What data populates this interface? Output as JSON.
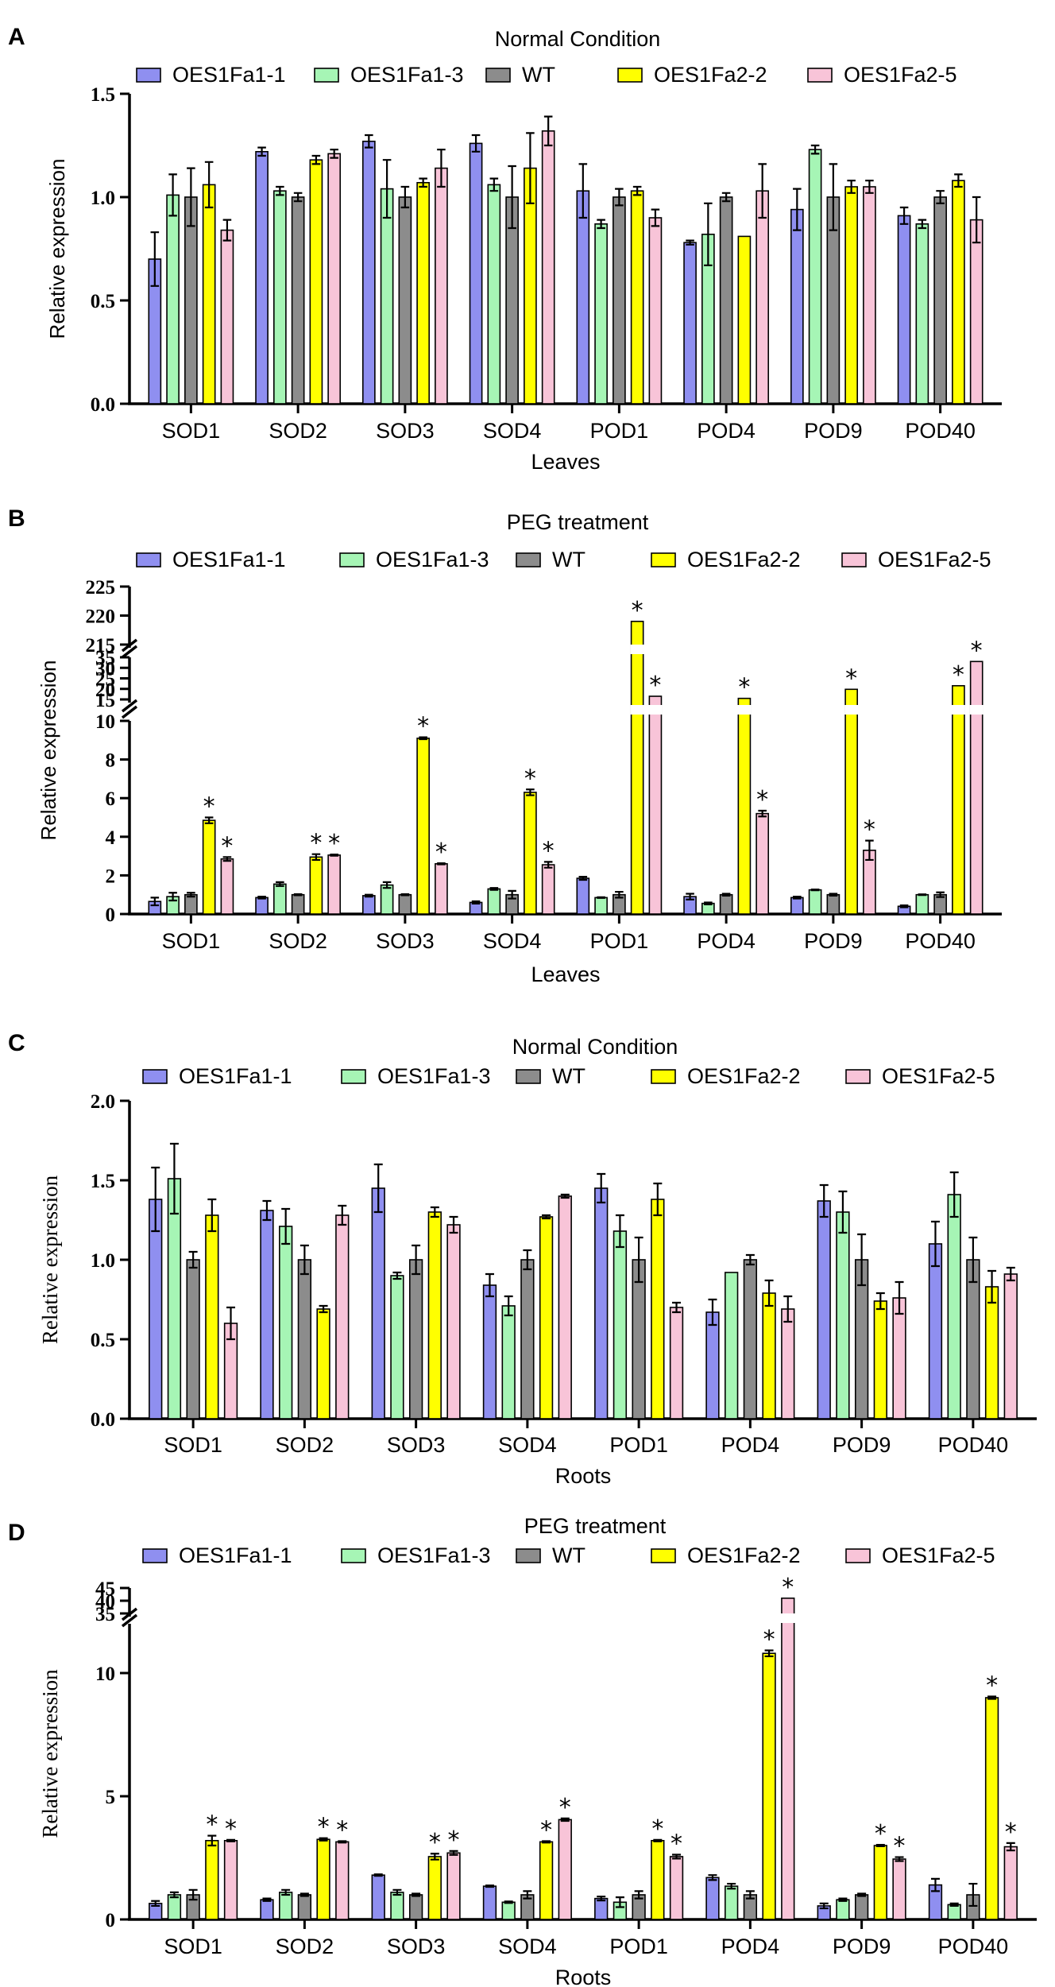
{
  "figure": {
    "colors": {
      "OES1Fa1-1": "#8f8ff0",
      "OES1Fa1-3": "#a6f5b5",
      "WT": "#8c8c8c",
      "OES1Fa2-2": "#ffff00",
      "OES1Fa2-5": "#f8c4d8"
    }
  },
  "chart_data": [
    {
      "panel": "A",
      "type": "bar",
      "title": "Normal Condition",
      "xlabel": "Leaves",
      "ylabel": "Relative expression",
      "ylim": [
        0,
        1.5
      ],
      "yticks": [
        "0.0",
        "0.5",
        "1.0",
        "1.5"
      ],
      "categories": [
        "SOD1",
        "SOD2",
        "SOD3",
        "SOD4",
        "POD1",
        "POD4",
        "POD9",
        "POD40"
      ],
      "series": [
        {
          "name": "OES1Fa1-1",
          "values": [
            0.7,
            1.22,
            1.27,
            1.26,
            1.03,
            0.78,
            0.94,
            0.91
          ],
          "errors": [
            0.13,
            0.02,
            0.03,
            0.04,
            0.13,
            0.01,
            0.1,
            0.04
          ]
        },
        {
          "name": "OES1Fa1-3",
          "values": [
            1.01,
            1.03,
            1.04,
            1.06,
            0.87,
            0.82,
            1.23,
            0.87
          ],
          "errors": [
            0.1,
            0.02,
            0.14,
            0.03,
            0.02,
            0.15,
            0.02,
            0.02
          ]
        },
        {
          "name": "WT",
          "values": [
            1.0,
            1.0,
            1.0,
            1.0,
            1.0,
            1.0,
            1.0,
            1.0
          ],
          "errors": [
            0.14,
            0.02,
            0.05,
            0.15,
            0.04,
            0.02,
            0.16,
            0.03
          ]
        },
        {
          "name": "OES1Fa2-2",
          "values": [
            1.06,
            1.18,
            1.07,
            1.14,
            1.03,
            0.81,
            1.05,
            1.08
          ],
          "errors": [
            0.11,
            0.02,
            0.02,
            0.17,
            0.02,
            0.0,
            0.03,
            0.03
          ]
        },
        {
          "name": "OES1Fa2-5",
          "values": [
            0.84,
            1.21,
            1.14,
            1.32,
            0.9,
            1.03,
            1.05,
            0.89
          ],
          "errors": [
            0.05,
            0.02,
            0.09,
            0.07,
            0.04,
            0.13,
            0.03,
            0.11
          ]
        }
      ],
      "significance": [
        [],
        [],
        [],
        [],
        [],
        [],
        [],
        []
      ]
    },
    {
      "panel": "B",
      "type": "bar",
      "title": "PEG treatment",
      "xlabel": "Leaves",
      "ylabel": "Relative expression",
      "broken_axis": true,
      "segments": [
        {
          "range": [
            0,
            10
          ],
          "yticks": [
            "0",
            "2",
            "4",
            "6",
            "8",
            "10"
          ]
        },
        {
          "range": [
            15,
            35
          ],
          "yticks": [
            "15",
            "20",
            "25",
            "30",
            "35"
          ]
        },
        {
          "range": [
            215,
            225
          ],
          "yticks": [
            "215",
            "220",
            "225"
          ]
        }
      ],
      "categories": [
        "SOD1",
        "SOD2",
        "SOD3",
        "SOD4",
        "POD1",
        "POD4",
        "POD9",
        "POD40"
      ],
      "series": [
        {
          "name": "OES1Fa1-1",
          "values": [
            0.65,
            0.85,
            0.95,
            0.6,
            1.85,
            0.9,
            0.85,
            0.4
          ],
          "errors": [
            0.2,
            0.05,
            0.05,
            0.06,
            0.08,
            0.15,
            0.05,
            0.05
          ]
        },
        {
          "name": "OES1Fa1-3",
          "values": [
            0.9,
            1.55,
            1.5,
            1.3,
            0.85,
            0.55,
            1.25,
            1.0
          ],
          "errors": [
            0.2,
            0.1,
            0.15,
            0.05,
            0.02,
            0.05,
            0.02,
            0.02
          ]
        },
        {
          "name": "WT",
          "values": [
            1.0,
            1.0,
            1.0,
            1.0,
            1.0,
            1.0,
            1.0,
            1.0
          ],
          "errors": [
            0.1,
            0.03,
            0.03,
            0.2,
            0.15,
            0.05,
            0.05,
            0.12
          ]
        },
        {
          "name": "OES1Fa2-2",
          "values": [
            4.85,
            2.95,
            9.1,
            6.3,
            219.0,
            15.5,
            19.8,
            21.5
          ],
          "errors": [
            0.15,
            0.15,
            0.05,
            0.15,
            0.0,
            0.0,
            0.0,
            0.0
          ]
        },
        {
          "name": "OES1Fa2-5",
          "values": [
            2.85,
            3.05,
            2.6,
            2.55,
            16.5,
            5.2,
            3.3,
            33.0
          ],
          "errors": [
            0.1,
            0.03,
            0.03,
            0.15,
            0.0,
            0.15,
            0.5,
            0.0
          ]
        }
      ],
      "significance": [
        [
          3,
          4
        ],
        [
          3,
          4
        ],
        [
          3,
          4
        ],
        [
          3,
          4
        ],
        [
          3,
          4
        ],
        [
          3,
          4
        ],
        [
          3,
          4
        ],
        [
          3,
          4
        ]
      ],
      "significance_mark": "*"
    },
    {
      "panel": "C",
      "type": "bar",
      "title": "Normal Condition",
      "xlabel": "Roots",
      "ylabel": "Relative expression",
      "ylim": [
        0,
        2.0
      ],
      "yticks": [
        "0.0",
        "0.5",
        "1.0",
        "1.5",
        "2.0"
      ],
      "categories": [
        "SOD1",
        "SOD2",
        "SOD3",
        "SOD4",
        "POD1",
        "POD4",
        "POD9",
        "POD40"
      ],
      "series": [
        {
          "name": "OES1Fa1-1",
          "values": [
            1.38,
            1.31,
            1.45,
            0.84,
            1.45,
            0.67,
            1.37,
            1.1
          ],
          "errors": [
            0.2,
            0.06,
            0.15,
            0.07,
            0.09,
            0.08,
            0.1,
            0.14
          ]
        },
        {
          "name": "OES1Fa1-3",
          "values": [
            1.51,
            1.21,
            0.9,
            0.71,
            1.18,
            0.92,
            1.3,
            1.41
          ],
          "errors": [
            0.22,
            0.11,
            0.02,
            0.06,
            0.1,
            0.0,
            0.13,
            0.14
          ]
        },
        {
          "name": "WT",
          "values": [
            1.0,
            1.0,
            1.0,
            1.0,
            1.0,
            1.0,
            1.0,
            1.0
          ],
          "errors": [
            0.05,
            0.09,
            0.09,
            0.06,
            0.14,
            0.03,
            0.16,
            0.14
          ]
        },
        {
          "name": "OES1Fa2-2",
          "values": [
            1.28,
            0.69,
            1.3,
            1.27,
            1.38,
            0.79,
            0.74,
            0.83
          ],
          "errors": [
            0.1,
            0.02,
            0.03,
            0.01,
            0.1,
            0.08,
            0.05,
            0.1
          ]
        },
        {
          "name": "OES1Fa2-5",
          "values": [
            0.6,
            1.28,
            1.22,
            1.4,
            0.7,
            0.69,
            0.76,
            0.91
          ],
          "errors": [
            0.1,
            0.06,
            0.05,
            0.01,
            0.03,
            0.08,
            0.1,
            0.04
          ]
        }
      ],
      "significance": [
        [],
        [],
        [],
        [],
        [],
        [],
        [],
        []
      ]
    },
    {
      "panel": "D",
      "type": "bar",
      "title": "PEG treatment",
      "xlabel": "Roots",
      "ylabel": "Relative expression",
      "broken_axis": true,
      "segments": [
        {
          "range": [
            0,
            12
          ],
          "yticks": [
            "0",
            "5",
            "10"
          ]
        },
        {
          "range": [
            35,
            45
          ],
          "yticks": [
            "35",
            "40",
            "45"
          ]
        }
      ],
      "categories": [
        "SOD1",
        "SOD2",
        "SOD3",
        "SOD4",
        "POD1",
        "POD4",
        "POD9",
        "POD40"
      ],
      "series": [
        {
          "name": "OES1Fa1-1",
          "values": [
            0.65,
            0.8,
            1.8,
            1.35,
            0.85,
            1.7,
            0.55,
            1.4
          ],
          "errors": [
            0.1,
            0.05,
            0.03,
            0.03,
            0.08,
            0.1,
            0.1,
            0.25
          ]
        },
        {
          "name": "OES1Fa1-3",
          "values": [
            1.0,
            1.1,
            1.1,
            0.7,
            0.7,
            1.35,
            0.8,
            0.6
          ],
          "errors": [
            0.1,
            0.1,
            0.1,
            0.03,
            0.2,
            0.1,
            0.05,
            0.05
          ]
        },
        {
          "name": "WT",
          "values": [
            1.0,
            1.0,
            1.0,
            1.0,
            1.0,
            1.0,
            1.0,
            1.0
          ],
          "errors": [
            0.2,
            0.05,
            0.05,
            0.15,
            0.15,
            0.15,
            0.05,
            0.45
          ]
        },
        {
          "name": "OES1Fa2-2",
          "values": [
            3.2,
            3.25,
            2.55,
            3.15,
            3.2,
            10.8,
            3.0,
            9.0
          ],
          "errors": [
            0.2,
            0.05,
            0.12,
            0.03,
            0.03,
            0.12,
            0.03,
            0.05
          ]
        },
        {
          "name": "OES1Fa2-5",
          "values": [
            3.2,
            3.15,
            2.7,
            4.05,
            2.55,
            41.0,
            2.45,
            2.95
          ],
          "errors": [
            0.03,
            0.03,
            0.08,
            0.05,
            0.08,
            0.0,
            0.08,
            0.15
          ]
        }
      ],
      "significance": [
        [
          3,
          4
        ],
        [
          3,
          4
        ],
        [
          3,
          4
        ],
        [
          3,
          4
        ],
        [
          3,
          4
        ],
        [
          3,
          4
        ],
        [
          3,
          4
        ],
        [
          3,
          4
        ]
      ],
      "significance_mark": "*"
    }
  ]
}
